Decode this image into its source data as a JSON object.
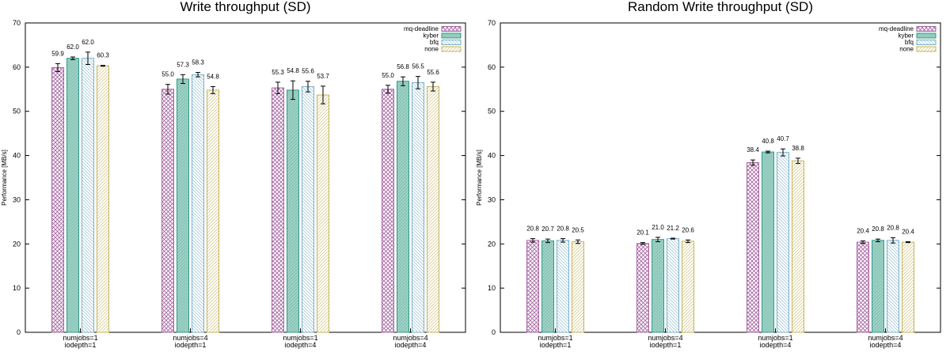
{
  "charts": [
    {
      "chart_data": {
        "type": "bar",
        "title": "Write throughput (SD)",
        "ylabel": "Performance [MB/s]",
        "xlabel": "",
        "ylim": [
          0,
          70
        ],
        "yticks": [
          0,
          10,
          20,
          30,
          40,
          50,
          60,
          70
        ],
        "grid": false,
        "legend_position": "top-right",
        "categories": [
          [
            "numjobs=1",
            "iodepth=1"
          ],
          [
            "numjobs=4",
            "iodepth=1"
          ],
          [
            "numjobs=1",
            "iodepth=4"
          ],
          [
            "numjobs=4",
            "iodepth=4"
          ]
        ],
        "series": [
          {
            "name": "mq-deadline",
            "values": [
              59.9,
              55.0,
              55.3,
              55.0
            ],
            "errors": [
              0.9,
              1.1,
              1.3,
              0.9
            ]
          },
          {
            "name": "kyber",
            "values": [
              62.0,
              57.3,
              54.8,
              56.8
            ],
            "errors": [
              0.3,
              1.0,
              2.1,
              1.0
            ]
          },
          {
            "name": "bfq",
            "values": [
              62.0,
              58.3,
              55.6,
              56.5
            ],
            "errors": [
              1.4,
              0.5,
              1.2,
              1.4
            ]
          },
          {
            "name": "none",
            "values": [
              60.3,
              54.8,
              53.7,
              55.6
            ],
            "errors": [
              0.1,
              0.8,
              2.0,
              1.0
            ]
          }
        ],
        "colors": {
          "mq-deadline": "#a765a3",
          "kyber": "#2e9a86",
          "bfq": "#7ab0c8",
          "none": "#c6b45c"
        }
      }
    },
    {
      "chart_data": {
        "type": "bar",
        "title": "Random Write throughput (SD)",
        "ylabel": "Performance [MB/s]",
        "xlabel": "",
        "ylim": [
          0,
          70
        ],
        "yticks": [
          0,
          10,
          20,
          30,
          40,
          50,
          60,
          70
        ],
        "grid": false,
        "legend_position": "top-right",
        "categories": [
          [
            "numjobs=1",
            "iodepth=1"
          ],
          [
            "numjobs=4",
            "iodepth=1"
          ],
          [
            "numjobs=1",
            "iodepth=4"
          ],
          [
            "numjobs=4",
            "iodepth=4"
          ]
        ],
        "series": [
          {
            "name": "mq-deadline",
            "values": [
              20.8,
              20.1,
              38.4,
              20.4
            ],
            "errors": [
              0.4,
              0.2,
              0.6,
              0.3
            ]
          },
          {
            "name": "kyber",
            "values": [
              20.7,
              21.0,
              40.8,
              20.8
            ],
            "errors": [
              0.4,
              0.5,
              0.2,
              0.3
            ]
          },
          {
            "name": "bfq",
            "values": [
              20.8,
              21.2,
              40.7,
              20.8
            ],
            "errors": [
              0.4,
              0.1,
              0.8,
              0.6
            ]
          },
          {
            "name": "none",
            "values": [
              20.5,
              20.6,
              38.8,
              20.4
            ],
            "errors": [
              0.4,
              0.3,
              0.6,
              0.1
            ]
          }
        ],
        "colors": {
          "mq-deadline": "#a765a3",
          "kyber": "#2e9a86",
          "bfq": "#7ab0c8",
          "none": "#c6b45c"
        }
      }
    }
  ]
}
